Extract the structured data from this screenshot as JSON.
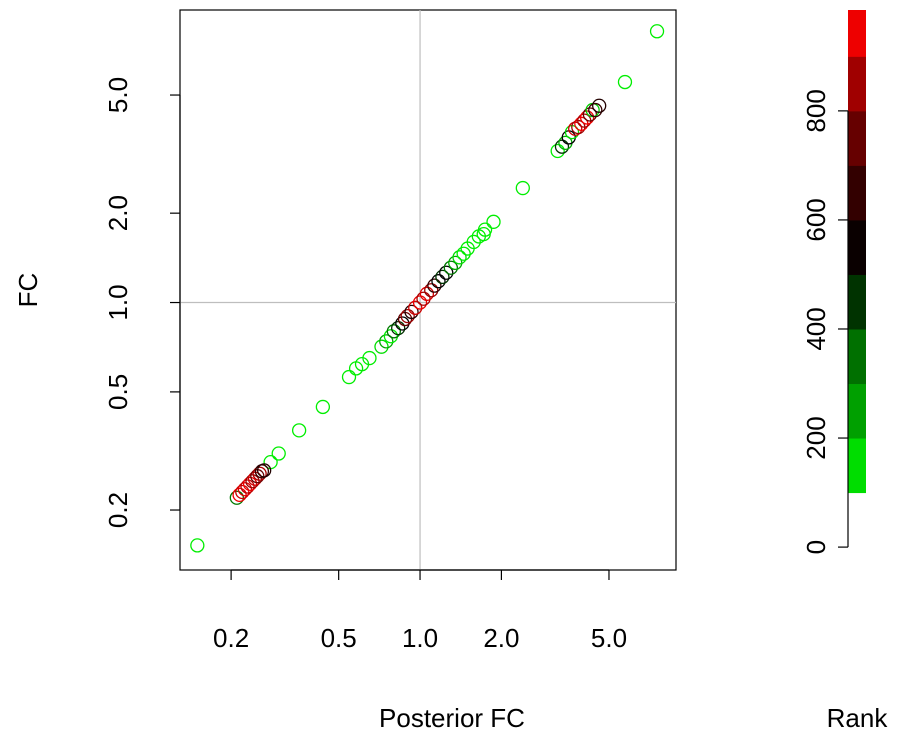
{
  "chart_data": {
    "type": "scatter",
    "x_label": "Posterior FC",
    "y_label": "FC",
    "log_x": true,
    "log_y": true,
    "xlim": [
      0.1294,
      8.85
    ],
    "ylim": [
      0.1256,
      9.67
    ],
    "xticks": [
      0.2,
      0.5,
      {
        "value": 1,
        "label": "1.0"
      },
      {
        "value": 2,
        "label": "2.0"
      },
      {
        "value": 5,
        "label": "5.0"
      }
    ],
    "yticks": [
      0.2,
      0.5,
      {
        "value": 1,
        "label": "1.0"
      },
      {
        "value": 2,
        "label": "2.0"
      },
      {
        "value": 5,
        "label": "5.0"
      }
    ],
    "reference_lines": {
      "x": 1,
      "y": 1,
      "color": "#bebebe"
    },
    "x": [
      0.15,
      0.28,
      0.3,
      0.357,
      0.437,
      0.546,
      0.58,
      0.61,
      0.65,
      1.72,
      1.74,
      1.87,
      2.4,
      3.23,
      5.73,
      7.53,
      0.21,
      0.215,
      0.22,
      0.225,
      0.23,
      0.235,
      0.24,
      0.245,
      0.25,
      0.255,
      0.26,
      0.265,
      0.72,
      0.75,
      0.78,
      0.8,
      0.83,
      0.86,
      0.88,
      0.9,
      0.93,
      0.96,
      1.0,
      1.03,
      1.06,
      1.1,
      1.13,
      1.17,
      1.21,
      1.25,
      1.3,
      1.35,
      1.4,
      1.45,
      1.5,
      1.58,
      1.65,
      3.35,
      3.45,
      3.55,
      3.65,
      3.75,
      3.85,
      3.95,
      4.05,
      4.15,
      4.25,
      4.35,
      4.45,
      4.6
    ],
    "y": [
      0.152,
      0.29,
      0.31,
      0.371,
      0.445,
      0.561,
      0.6,
      0.62,
      0.65,
      1.7,
      1.76,
      1.87,
      2.43,
      3.24,
      5.53,
      8.2,
      0.22,
      0.225,
      0.23,
      0.235,
      0.24,
      0.245,
      0.25,
      0.255,
      0.26,
      0.265,
      0.27,
      0.272,
      0.71,
      0.74,
      0.77,
      0.8,
      0.82,
      0.85,
      0.88,
      0.9,
      0.93,
      0.96,
      1.0,
      1.03,
      1.07,
      1.1,
      1.14,
      1.18,
      1.22,
      1.26,
      1.31,
      1.36,
      1.42,
      1.46,
      1.52,
      1.6,
      1.67,
      3.35,
      3.45,
      3.6,
      3.75,
      3.85,
      3.9,
      4.0,
      4.1,
      4.2,
      4.3,
      4.45,
      4.45,
      4.6
    ],
    "colors": [
      "#00ee00",
      "#00ee00",
      "#00ee00",
      "#00ee00",
      "#00ee00",
      "#00ee00",
      "#00ee00",
      "#00ee00",
      "#00ee00",
      "#00ee00",
      "#00ee00",
      "#00ee00",
      "#00ee00",
      "#00ee00",
      "#00ee00",
      "#00ee00",
      "#007700",
      "#ee0000",
      "#cc0000",
      "#dd0000",
      "#bb0000",
      "#ee0000",
      "#990000",
      "#cc0000",
      "#660000",
      "#aa0000",
      "#330000",
      "#220000",
      "#00dd00",
      "#00aa00",
      "#00ee00",
      "#007700",
      "#003300",
      "#000000",
      "#660000",
      "#990000",
      "#220000",
      "#cc0000",
      "#ee0000",
      "#aa0000",
      "#dd0000",
      "#990000",
      "#330000",
      "#000000",
      "#003300",
      "#000000",
      "#007700",
      "#00aa00",
      "#00dd00",
      "#00ee00",
      "#00ee00",
      "#00ee00",
      "#00ee00",
      "#003300",
      "#00aa00",
      "#000000",
      "#00dd00",
      "#cc0000",
      "#990000",
      "#ee0000",
      "#aa0000",
      "#ee0000",
      "#660000",
      "#00cc00",
      "#330000",
      "#220000"
    ],
    "colorbar": {
      "title": "Rank",
      "ylim": [
        -42,
        985
      ],
      "yticks": [
        0,
        200,
        400,
        600,
        800
      ],
      "bins": [
        100,
        200,
        300,
        400,
        500,
        600,
        700,
        800,
        900,
        985
      ],
      "colors": [
        "#00dd00",
        "#00a000",
        "#007000",
        "#003300",
        "#0a0000",
        "#330000",
        "#660000",
        "#a00000",
        "#ee0000"
      ]
    }
  }
}
